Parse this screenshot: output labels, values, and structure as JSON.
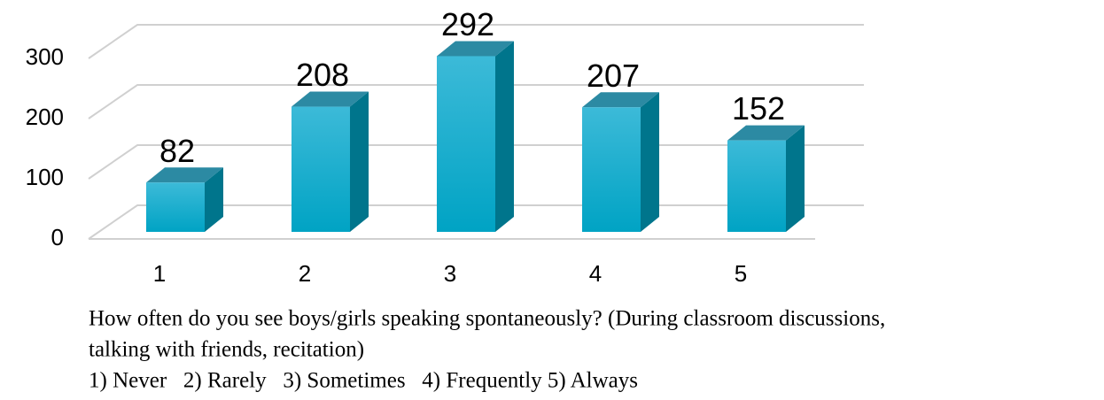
{
  "chart_data": {
    "type": "bar3d",
    "categories": [
      "1",
      "2",
      "3",
      "4",
      "5"
    ],
    "values": [
      82,
      208,
      292,
      207,
      152
    ],
    "color": "#19acca",
    "ylim": [
      0,
      300
    ],
    "yticks": [
      0,
      100,
      200,
      300
    ],
    "grid": true,
    "caption": [
      "How often do you see boys/girls speaking spontaneously? (During classroom discussions,",
      "talking with friends, recitation)",
      "1) Never   2) Rarely   3) Sometimes   4) Frequently 5) Always"
    ]
  }
}
